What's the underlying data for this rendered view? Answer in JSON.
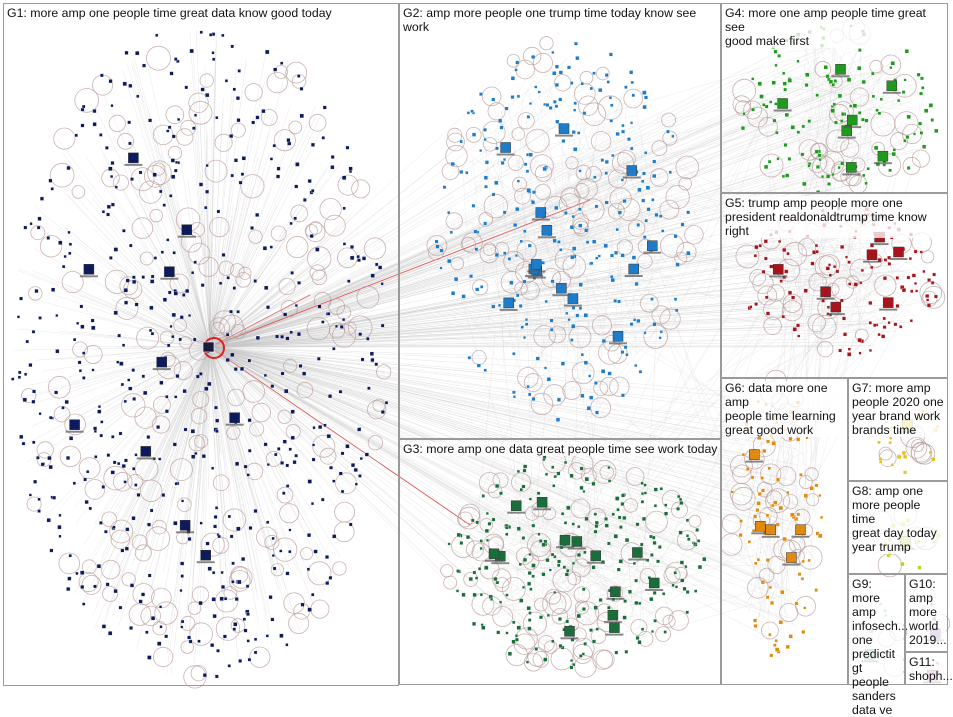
{
  "colors": {
    "background": "#ffffff",
    "border": "#9a9a9a",
    "edge": "#c8c8c8",
    "highlight_edge": "#e03030",
    "hub_ring": "#e02020",
    "circle": "#b89a9a"
  },
  "groups": [
    {
      "id": "g1",
      "label": "G1: more amp one people time great data know good today",
      "node_color": "#0d1a5e"
    },
    {
      "id": "g2",
      "label": "G2: amp more people one trump time today know see work",
      "node_color": "#1e7cc8"
    },
    {
      "id": "g3",
      "label": "G3: more amp one data great people time see work today",
      "node_color": "#1a6e3a"
    },
    {
      "id": "g4",
      "label": "G4: more one amp people time great see\ngood make first",
      "node_color": "#1f9a1f"
    },
    {
      "id": "g5",
      "label": "G5: trump amp people more one\npresident realdonaldtrump time know right",
      "node_color": "#a8141c"
    },
    {
      "id": "g6",
      "label": "G6: data more one amp\npeople time learning\ngreat good work",
      "node_color": "#e08a10"
    },
    {
      "id": "g7",
      "label": "G7: more amp\npeople 2020 one\nyear brand work\nbrands time",
      "node_color": "#e6c21a"
    },
    {
      "id": "g8",
      "label": "G8: amp one\nmore people time\ngreat day today\nyear trump",
      "node_color": "#b8d42a"
    },
    {
      "id": "g9",
      "label": "G9: more\namp\ninfosech...\none\npredictit gt\npeople\nsanders\ndata ve",
      "node_color": "#7fbf9f"
    },
    {
      "id": "g10",
      "label": "G10:\namp\nmore\nworld\n2019...",
      "node_color": "#9a70c0"
    },
    {
      "id": "g11",
      "label": "G11:\nshoph...",
      "node_color": "#c070b0"
    }
  ]
}
